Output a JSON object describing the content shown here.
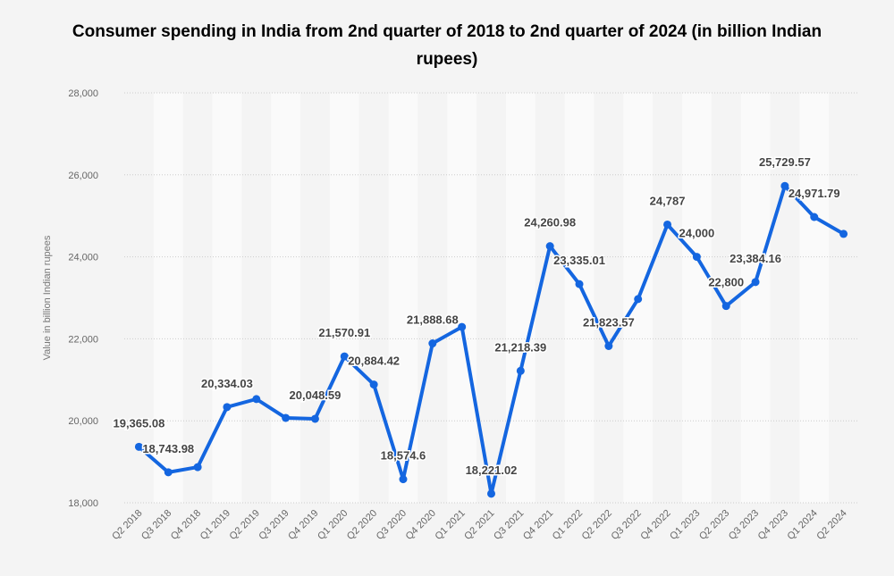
{
  "chart_data": {
    "type": "line",
    "title": "Consumer spending in India from 2nd quarter of 2018 to 2nd quarter of 2024 (in billion Indian rupees)",
    "xlabel": "",
    "ylabel": "Value in billion Indian rupees",
    "ylim": [
      18000,
      28000
    ],
    "yticks": [
      18000,
      20000,
      22000,
      24000,
      26000,
      28000
    ],
    "ytick_labels": [
      "18,000",
      "20,000",
      "22,000",
      "24,000",
      "26,000",
      "28,000"
    ],
    "grid": "horizontal dotted",
    "color": "#1466e0",
    "categories": [
      "Q2 2018",
      "Q3 2018",
      "Q4 2018",
      "Q1 2019",
      "Q2 2019",
      "Q3 2019",
      "Q4 2019",
      "Q1 2020",
      "Q2 2020",
      "Q3 2020",
      "Q4 2020",
      "Q1 2021",
      "Q2 2021",
      "Q3 2021",
      "Q4 2021",
      "Q1 2022",
      "Q2 2022",
      "Q3 2022",
      "Q4 2022",
      "Q1 2023",
      "Q2 2023",
      "Q3 2023",
      "Q4 2023",
      "Q1 2024",
      "Q2 2024"
    ],
    "values": [
      19365.08,
      18743.98,
      18870,
      20334.03,
      20530,
      20070,
      20048.59,
      21570.91,
      20884.42,
      18574.6,
      21888.68,
      22290,
      18221.02,
      21218.39,
      24260.98,
      23335.01,
      21823.57,
      22970,
      24787,
      24000,
      22800,
      23384.16,
      25729.57,
      24971.79,
      24560
    ],
    "data_labels": [
      "19,365.08",
      "18,743.98",
      null,
      "20,334.03",
      null,
      null,
      "20,048.59",
      "21,570.91",
      "20,884.42",
      "18,574.6",
      "21,888.68",
      null,
      "18,221.02",
      "21,218.39",
      "24,260.98",
      "23,335.01",
      "21,823.57",
      null,
      "24,787",
      "24,000",
      "22,800",
      "23,384.16",
      "25,729.57",
      "24,971.79",
      null
    ]
  }
}
